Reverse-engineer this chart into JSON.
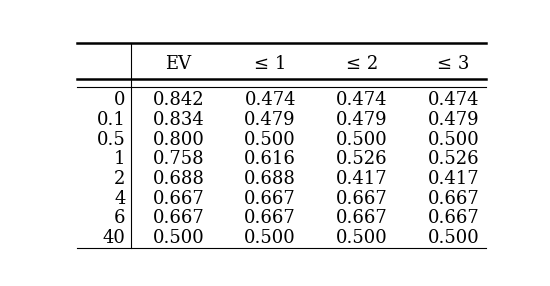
{
  "row_labels": [
    "0",
    "0.1",
    "0.5",
    "1",
    "2",
    "4",
    "6",
    "40"
  ],
  "col_headers": [
    "EV",
    "≤ 1",
    "≤ 2",
    "≤ 3"
  ],
  "table_data": [
    [
      "0.842",
      "0.474",
      "0.474",
      "0.474"
    ],
    [
      "0.834",
      "0.479",
      "0.479",
      "0.479"
    ],
    [
      "0.800",
      "0.500",
      "0.500",
      "0.500"
    ],
    [
      "0.758",
      "0.616",
      "0.526",
      "0.526"
    ],
    [
      "0.688",
      "0.688",
      "0.417",
      "0.417"
    ],
    [
      "0.667",
      "0.667",
      "0.667",
      "0.667"
    ],
    [
      "0.667",
      "0.667",
      "0.667",
      "0.667"
    ],
    [
      "0.500",
      "0.500",
      "0.500",
      "0.500"
    ]
  ],
  "figsize": [
    5.5,
    2.86
  ],
  "dpi": 100,
  "font_size": 13,
  "header_font_size": 13,
  "background_color": "#ffffff",
  "text_color": "#000000",
  "line_color": "#000000",
  "lw_thick": 1.8,
  "lw_thin": 0.8
}
